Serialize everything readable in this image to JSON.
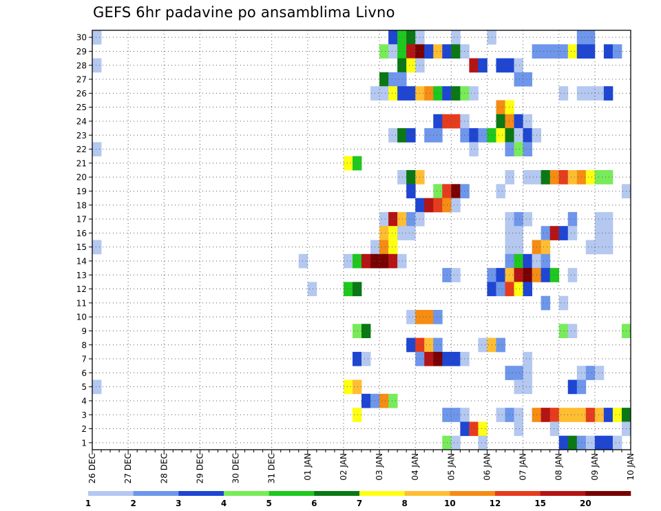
{
  "chart_data": {
    "type": "heatmap",
    "title": "GEFS 6hr padavine po ansamblima Livno",
    "xlabel": "",
    "ylabel": "",
    "x_ticks": [
      "26 DEC",
      "27 DEC",
      "28 DEC",
      "29 DEC",
      "30 DEC",
      "31 DEC",
      "01 JAN",
      "02 JAN",
      "03 JAN",
      "04 JAN",
      "05 JAN",
      "06 JAN",
      "07 JAN",
      "08 JAN",
      "09 JAN",
      "10 JAN"
    ],
    "y_ticks": [
      "1",
      "2",
      "3",
      "4",
      "5",
      "6",
      "7",
      "8",
      "9",
      "10",
      "11",
      "12",
      "13",
      "14",
      "15",
      "16",
      "17",
      "18",
      "19",
      "20",
      "21",
      "22",
      "23",
      "24",
      "25",
      "26",
      "27",
      "28",
      "29",
      "30"
    ],
    "time_steps_per_day": 4,
    "grid": true,
    "colorbar": {
      "position": "bottom",
      "levels": [
        1,
        2,
        3,
        4,
        5,
        6,
        7,
        8,
        10,
        12,
        15,
        20
      ],
      "level_labels": [
        "1",
        "2",
        "3",
        "4",
        "5",
        "6",
        "7",
        "8",
        "10",
        "12",
        "15",
        "20"
      ],
      "colors": [
        "#b4c8f0",
        "#6e96eb",
        "#1e46d2",
        "#78eb5a",
        "#1ec81e",
        "#0a7814",
        "#ffff14",
        "#ffbe32",
        "#f58c14",
        "#e63c1e",
        "#b41414",
        "#780000"
      ]
    },
    "cells": [
      [
        30,
        1,
        1
      ],
      [
        30,
        34,
        3
      ],
      [
        30,
        35,
        5
      ],
      [
        30,
        36,
        6
      ],
      [
        30,
        37,
        1
      ],
      [
        30,
        41,
        1
      ],
      [
        30,
        45,
        1
      ],
      [
        30,
        55,
        2
      ],
      [
        30,
        56,
        2
      ],
      [
        29,
        33,
        4
      ],
      [
        29,
        34,
        1
      ],
      [
        29,
        35,
        5
      ],
      [
        29,
        36,
        11
      ],
      [
        29,
        37,
        12
      ],
      [
        29,
        38,
        3
      ],
      [
        29,
        39,
        8
      ],
      [
        29,
        40,
        3
      ],
      [
        29,
        41,
        6
      ],
      [
        29,
        42,
        1
      ],
      [
        29,
        50,
        2
      ],
      [
        29,
        51,
        2
      ],
      [
        29,
        52,
        2
      ],
      [
        29,
        53,
        2
      ],
      [
        29,
        54,
        7
      ],
      [
        29,
        55,
        3
      ],
      [
        29,
        56,
        3
      ],
      [
        29,
        58,
        3
      ],
      [
        29,
        59,
        2
      ],
      [
        28,
        1,
        1
      ],
      [
        28,
        35,
        6
      ],
      [
        28,
        36,
        7
      ],
      [
        28,
        37,
        1
      ],
      [
        28,
        43,
        11
      ],
      [
        28,
        44,
        3
      ],
      [
        28,
        46,
        3
      ],
      [
        28,
        47,
        3
      ],
      [
        28,
        48,
        1
      ],
      [
        27,
        33,
        6
      ],
      [
        27,
        34,
        2
      ],
      [
        27,
        35,
        2
      ],
      [
        27,
        48,
        2
      ],
      [
        27,
        49,
        2
      ],
      [
        26,
        32,
        1
      ],
      [
        26,
        33,
        1
      ],
      [
        26,
        34,
        7
      ],
      [
        26,
        35,
        3
      ],
      [
        26,
        36,
        3
      ],
      [
        26,
        37,
        8
      ],
      [
        26,
        38,
        9
      ],
      [
        26,
        39,
        5
      ],
      [
        26,
        40,
        3
      ],
      [
        26,
        41,
        6
      ],
      [
        26,
        42,
        4
      ],
      [
        26,
        43,
        1
      ],
      [
        26,
        53,
        1
      ],
      [
        26,
        55,
        1
      ],
      [
        26,
        56,
        1
      ],
      [
        26,
        57,
        1
      ],
      [
        26,
        58,
        3
      ],
      [
        25,
        46,
        9
      ],
      [
        25,
        47,
        7
      ],
      [
        24,
        39,
        3
      ],
      [
        24,
        40,
        10
      ],
      [
        24,
        41,
        10
      ],
      [
        24,
        42,
        1
      ],
      [
        24,
        46,
        6
      ],
      [
        24,
        47,
        9
      ],
      [
        24,
        48,
        3
      ],
      [
        24,
        49,
        1
      ],
      [
        23,
        34,
        1
      ],
      [
        23,
        35,
        6
      ],
      [
        23,
        36,
        3
      ],
      [
        23,
        38,
        2
      ],
      [
        23,
        39,
        2
      ],
      [
        23,
        42,
        2
      ],
      [
        23,
        43,
        3
      ],
      [
        23,
        44,
        2
      ],
      [
        23,
        45,
        5
      ],
      [
        23,
        46,
        7
      ],
      [
        23,
        47,
        6
      ],
      [
        23,
        48,
        1
      ],
      [
        23,
        49,
        3
      ],
      [
        23,
        50,
        1
      ],
      [
        22,
        1,
        1
      ],
      [
        22,
        43,
        1
      ],
      [
        22,
        47,
        2
      ],
      [
        22,
        48,
        4
      ],
      [
        22,
        49,
        2
      ],
      [
        21,
        29,
        7
      ],
      [
        21,
        30,
        5
      ],
      [
        20,
        35,
        1
      ],
      [
        20,
        36,
        6
      ],
      [
        20,
        37,
        8
      ],
      [
        20,
        47,
        1
      ],
      [
        20,
        49,
        1
      ],
      [
        20,
        50,
        1
      ],
      [
        20,
        51,
        6
      ],
      [
        20,
        52,
        9
      ],
      [
        20,
        53,
        10
      ],
      [
        20,
        54,
        8
      ],
      [
        20,
        55,
        9
      ],
      [
        20,
        56,
        7
      ],
      [
        20,
        57,
        4
      ],
      [
        20,
        58,
        4
      ],
      [
        19,
        36,
        3
      ],
      [
        19,
        39,
        4
      ],
      [
        19,
        40,
        10
      ],
      [
        19,
        41,
        12
      ],
      [
        19,
        42,
        2
      ],
      [
        19,
        46,
        1
      ],
      [
        19,
        60,
        1
      ],
      [
        18,
        37,
        3
      ],
      [
        18,
        38,
        11
      ],
      [
        18,
        39,
        10
      ],
      [
        18,
        40,
        9
      ],
      [
        18,
        41,
        1
      ],
      [
        17,
        33,
        1
      ],
      [
        17,
        34,
        11
      ],
      [
        17,
        35,
        8
      ],
      [
        17,
        36,
        2
      ],
      [
        17,
        37,
        1
      ],
      [
        17,
        47,
        1
      ],
      [
        17,
        48,
        2
      ],
      [
        17,
        49,
        1
      ],
      [
        17,
        54,
        2
      ],
      [
        17,
        57,
        1
      ],
      [
        17,
        58,
        1
      ],
      [
        16,
        33,
        8
      ],
      [
        16,
        34,
        7
      ],
      [
        16,
        35,
        1
      ],
      [
        16,
        36,
        1
      ],
      [
        16,
        47,
        1
      ],
      [
        16,
        48,
        1
      ],
      [
        16,
        51,
        2
      ],
      [
        16,
        52,
        11
      ],
      [
        16,
        53,
        3
      ],
      [
        16,
        54,
        1
      ],
      [
        16,
        57,
        1
      ],
      [
        16,
        58,
        1
      ],
      [
        15,
        1,
        1
      ],
      [
        15,
        32,
        1
      ],
      [
        15,
        33,
        9
      ],
      [
        15,
        34,
        7
      ],
      [
        15,
        47,
        1
      ],
      [
        15,
        48,
        1
      ],
      [
        15,
        50,
        9
      ],
      [
        15,
        51,
        8
      ],
      [
        15,
        56,
        1
      ],
      [
        15,
        57,
        1
      ],
      [
        15,
        58,
        1
      ],
      [
        14,
        24,
        1
      ],
      [
        14,
        29,
        1
      ],
      [
        14,
        30,
        5
      ],
      [
        14,
        31,
        11
      ],
      [
        14,
        32,
        12
      ],
      [
        14,
        33,
        12
      ],
      [
        14,
        34,
        11
      ],
      [
        14,
        35,
        1
      ],
      [
        14,
        47,
        2
      ],
      [
        14,
        48,
        5
      ],
      [
        14,
        49,
        3
      ],
      [
        14,
        50,
        1
      ],
      [
        14,
        51,
        2
      ],
      [
        13,
        40,
        2
      ],
      [
        13,
        41,
        1
      ],
      [
        13,
        45,
        2
      ],
      [
        13,
        46,
        3
      ],
      [
        13,
        47,
        8
      ],
      [
        13,
        48,
        11
      ],
      [
        13,
        49,
        12
      ],
      [
        13,
        50,
        9
      ],
      [
        13,
        51,
        3
      ],
      [
        13,
        52,
        5
      ],
      [
        13,
        54,
        1
      ],
      [
        12,
        25,
        1
      ],
      [
        12,
        29,
        5
      ],
      [
        12,
        30,
        6
      ],
      [
        12,
        45,
        3
      ],
      [
        12,
        46,
        2
      ],
      [
        12,
        47,
        10
      ],
      [
        12,
        48,
        7
      ],
      [
        12,
        49,
        3
      ],
      [
        11,
        51,
        2
      ],
      [
        11,
        53,
        1
      ],
      [
        10,
        36,
        1
      ],
      [
        10,
        37,
        9
      ],
      [
        10,
        38,
        9
      ],
      [
        10,
        39,
        2
      ],
      [
        9,
        30,
        4
      ],
      [
        9,
        31,
        6
      ],
      [
        9,
        53,
        4
      ],
      [
        9,
        54,
        1
      ],
      [
        9,
        60,
        4
      ],
      [
        8,
        36,
        3
      ],
      [
        8,
        37,
        10
      ],
      [
        8,
        38,
        8
      ],
      [
        8,
        39,
        2
      ],
      [
        8,
        44,
        1
      ],
      [
        8,
        45,
        8
      ],
      [
        8,
        46,
        2
      ],
      [
        7,
        30,
        3
      ],
      [
        7,
        31,
        1
      ],
      [
        7,
        37,
        2
      ],
      [
        7,
        38,
        11
      ],
      [
        7,
        39,
        12
      ],
      [
        7,
        40,
        3
      ],
      [
        7,
        41,
        3
      ],
      [
        7,
        42,
        1
      ],
      [
        7,
        49,
        1
      ],
      [
        6,
        47,
        2
      ],
      [
        6,
        48,
        2
      ],
      [
        6,
        49,
        1
      ],
      [
        6,
        55,
        1
      ],
      [
        6,
        56,
        2
      ],
      [
        6,
        57,
        1
      ],
      [
        5,
        1,
        1
      ],
      [
        5,
        29,
        7
      ],
      [
        5,
        30,
        8
      ],
      [
        5,
        48,
        1
      ],
      [
        5,
        49,
        1
      ],
      [
        5,
        54,
        3
      ],
      [
        5,
        55,
        2
      ],
      [
        4,
        31,
        3
      ],
      [
        4,
        32,
        2
      ],
      [
        4,
        33,
        9
      ],
      [
        4,
        34,
        4
      ],
      [
        3,
        30,
        7
      ],
      [
        3,
        40,
        2
      ],
      [
        3,
        41,
        2
      ],
      [
        3,
        42,
        1
      ],
      [
        3,
        46,
        1
      ],
      [
        3,
        47,
        2
      ],
      [
        3,
        48,
        1
      ],
      [
        3,
        50,
        9
      ],
      [
        3,
        51,
        11
      ],
      [
        3,
        52,
        10
      ],
      [
        3,
        53,
        8
      ],
      [
        3,
        54,
        8
      ],
      [
        3,
        55,
        8
      ],
      [
        3,
        56,
        10
      ],
      [
        3,
        57,
        8
      ],
      [
        3,
        58,
        3
      ],
      [
        3,
        59,
        7
      ],
      [
        3,
        60,
        6
      ],
      [
        2,
        42,
        3
      ],
      [
        2,
        43,
        10
      ],
      [
        2,
        44,
        7
      ],
      [
        2,
        48,
        1
      ],
      [
        2,
        52,
        1
      ],
      [
        2,
        60,
        1
      ],
      [
        1,
        40,
        4
      ],
      [
        1,
        41,
        1
      ],
      [
        1,
        44,
        1
      ],
      [
        1,
        53,
        3
      ],
      [
        1,
        54,
        6
      ],
      [
        1,
        55,
        2
      ],
      [
        1,
        56,
        1
      ],
      [
        1,
        57,
        3
      ],
      [
        1,
        58,
        3
      ],
      [
        1,
        59,
        1
      ]
    ]
  }
}
